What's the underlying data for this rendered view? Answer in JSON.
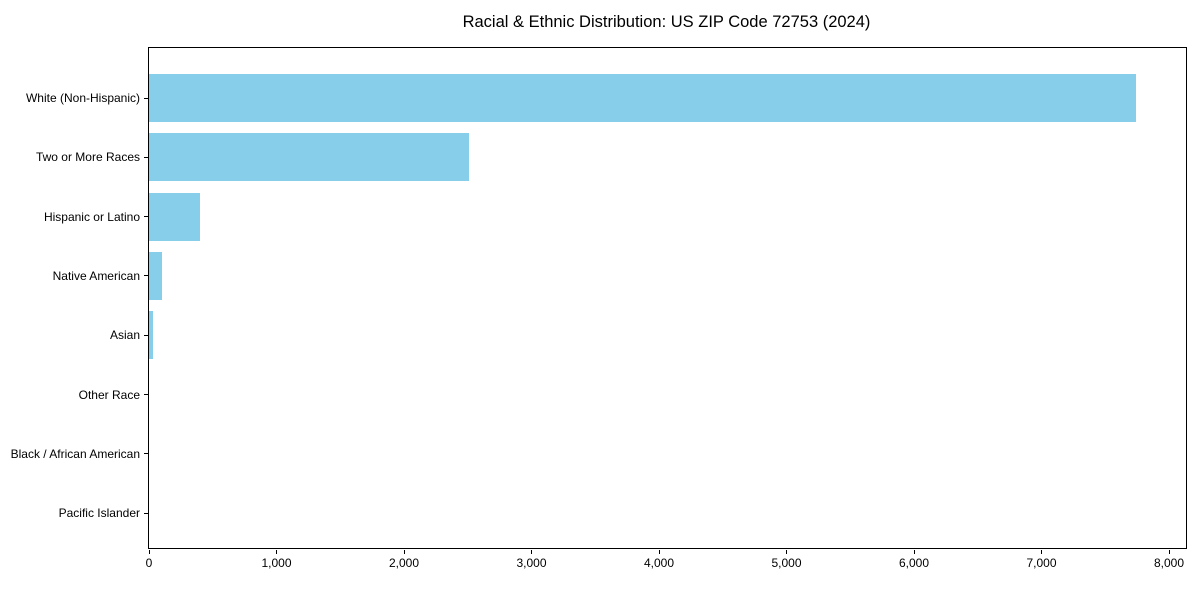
{
  "chart_data": {
    "type": "bar",
    "orientation": "horizontal",
    "title": "Racial & Ethnic Distribution: US ZIP Code 72753 (2024)",
    "categories": [
      "White (Non-Hispanic)",
      "Two or More Races",
      "Hispanic or Latino",
      "Native American",
      "Asian",
      "Other Race",
      "Black / African American",
      "Pacific Islander"
    ],
    "values": [
      7740,
      2510,
      400,
      100,
      35,
      0,
      0,
      0
    ],
    "xlabel": "",
    "ylabel": "",
    "xlim": [
      0,
      8000
    ],
    "x_ticks": [
      0,
      1000,
      2000,
      3000,
      4000,
      5000,
      6000,
      7000,
      8000
    ],
    "x_tick_labels": [
      "0",
      "1,000",
      "2,000",
      "3,000",
      "4,000",
      "5,000",
      "6,000",
      "7,000",
      "8,000"
    ],
    "bar_color": "#87CEEB",
    "spine_color": "#000000",
    "text_color": "#000000",
    "grid": false,
    "legend": null
  }
}
